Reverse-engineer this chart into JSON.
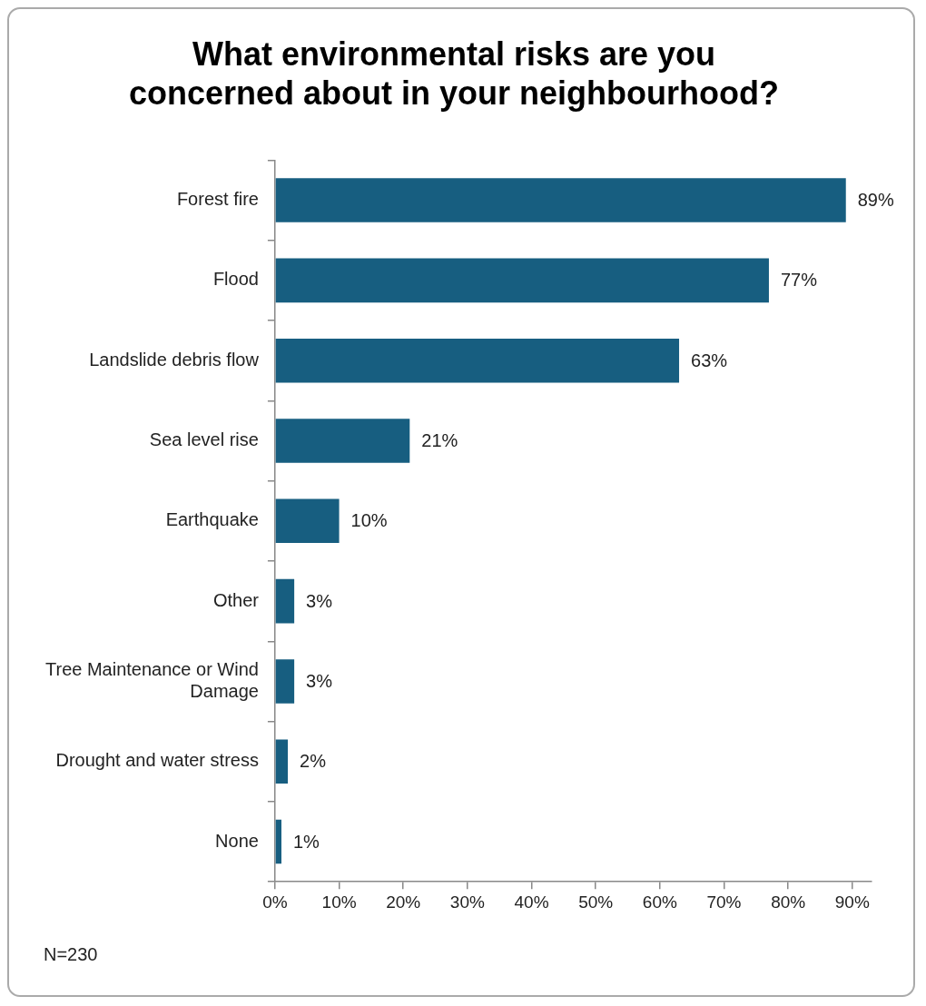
{
  "chart_data": {
    "type": "bar",
    "orientation": "horizontal",
    "title": "What environmental risks are you concerned about in your neighbourhood?",
    "categories": [
      "Forest fire",
      "Flood",
      "Landslide debris flow",
      "Sea level rise",
      "Earthquake",
      "Other",
      "Tree Maintenance or Wind Damage",
      "Drought and water stress",
      "None"
    ],
    "values": [
      89,
      77,
      63,
      21,
      10,
      3,
      3,
      2,
      1
    ],
    "value_labels": [
      "89%",
      "77%",
      "63%",
      "21%",
      "10%",
      "3%",
      "3%",
      "2%",
      "1%"
    ],
    "color": "#175e80",
    "xlim": [
      0,
      93
    ],
    "xticks": [
      {
        "value": 0,
        "label": "0%"
      },
      {
        "value": 10,
        "label": "10%"
      },
      {
        "value": 20,
        "label": "20%"
      },
      {
        "value": 30,
        "label": "30%"
      },
      {
        "value": 40,
        "label": "40%"
      },
      {
        "value": 50,
        "label": "50%"
      },
      {
        "value": 60,
        "label": "60%"
      },
      {
        "value": 70,
        "label": "70%"
      },
      {
        "value": 80,
        "label": "80%"
      },
      {
        "value": 90,
        "label": "90%"
      }
    ],
    "grid": false,
    "legend": false,
    "annotations": [
      "N=230"
    ]
  }
}
